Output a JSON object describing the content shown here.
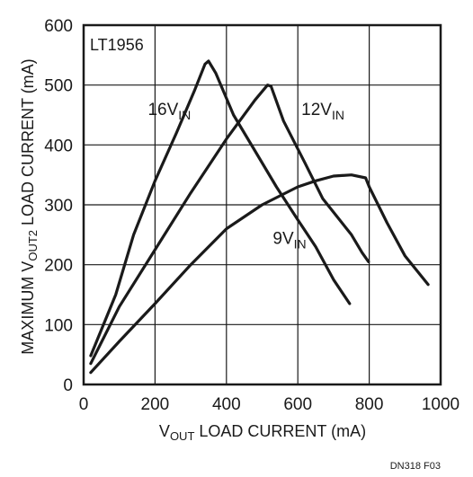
{
  "chart_data": {
    "type": "line",
    "part_label": "LT1956",
    "xlabel": {
      "prefix": "V",
      "sub": "OUT",
      "suffix": " LOAD CURRENT (mA)"
    },
    "ylabel": {
      "prefix": "MAXIMUM V",
      "sub": "OUT2",
      "suffix": " LOAD CURRENT (mA)"
    },
    "xlim": [
      0,
      1000
    ],
    "ylim": [
      0,
      600
    ],
    "xticks": [
      0,
      200,
      400,
      600,
      800,
      1000
    ],
    "xtick_labels": [
      "0",
      "200",
      "400",
      "600",
      "800",
      "1000"
    ],
    "yticks": [
      0,
      100,
      200,
      300,
      400,
      500,
      600
    ],
    "ytick_labels": [
      "0",
      "100",
      "200",
      "300",
      "400",
      "500",
      "600"
    ],
    "grid": true,
    "footnote": "DN318 F03",
    "series": [
      {
        "name": {
          "main": "16V",
          "sub": "IN"
        },
        "x": [
          20,
          90,
          140,
          200,
          260,
          310,
          340,
          350,
          370,
          420,
          480,
          540,
          600,
          650,
          700,
          745
        ],
        "y": [
          48,
          150,
          250,
          340,
          420,
          490,
          535,
          540,
          520,
          450,
          390,
          330,
          275,
          230,
          175,
          135
        ]
      },
      {
        "name": {
          "main": "12V",
          "sub": "IN"
        },
        "x": [
          20,
          100,
          200,
          300,
          400,
          480,
          515,
          525,
          560,
          620,
          670,
          710,
          750,
          780,
          798
        ],
        "y": [
          35,
          130,
          225,
          320,
          410,
          475,
          500,
          498,
          440,
          370,
          310,
          280,
          250,
          220,
          205
        ]
      },
      {
        "name": {
          "main": "9V",
          "sub": "IN"
        },
        "x": [
          20,
          100,
          200,
          300,
          400,
          500,
          600,
          650,
          700,
          750,
          790,
          800,
          850,
          900,
          965
        ],
        "y": [
          20,
          72,
          135,
          200,
          260,
          300,
          330,
          340,
          348,
          350,
          345,
          330,
          270,
          215,
          167
        ]
      }
    ],
    "series_label_positions": [
      {
        "x": 180,
        "y": 450
      },
      {
        "x": 610,
        "y": 450
      },
      {
        "x": 530,
        "y": 235
      }
    ]
  }
}
